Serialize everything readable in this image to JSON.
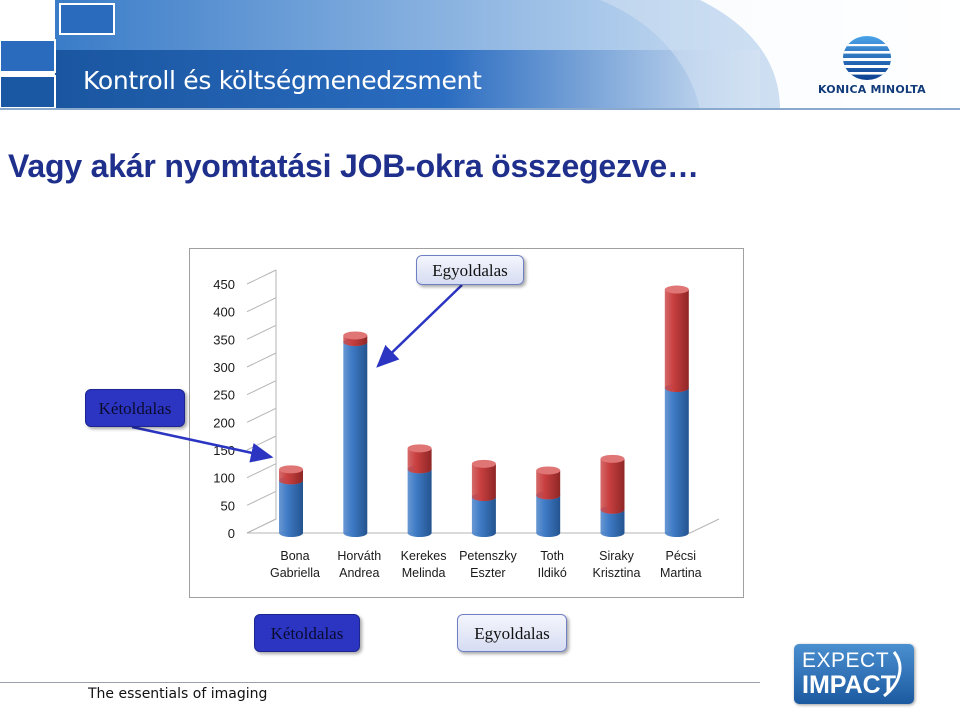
{
  "header": {
    "title": "Kontroll és költségmenedzsment",
    "logo_text": "KONICA MINOLTA",
    "band_color": "#1e5fa8"
  },
  "slide_title": "Vagy akár nyomtatási JOB-okra összegezve…",
  "chart_data": {
    "type": "bar",
    "stacked": true,
    "style": "3d-cylinder",
    "categories": [
      [
        "Bona",
        "Gabriella"
      ],
      [
        "Horváth",
        "Andrea"
      ],
      [
        "Kerekes",
        "Melinda"
      ],
      [
        "Petenszky",
        "Eszter"
      ],
      [
        "Toth",
        "Ildikó"
      ],
      [
        "Siraky",
        "Krisztina"
      ],
      [
        "Pécsi",
        "Martina"
      ]
    ],
    "series": [
      {
        "color": "#3f7bc6",
        "values": [
          95,
          345,
          115,
          65,
          68,
          42,
          262
        ]
      },
      {
        "color": "#c94040",
        "values": [
          20,
          12,
          38,
          60,
          45,
          92,
          178
        ]
      }
    ],
    "yticks": [
      "450",
      "400",
      "350",
      "300",
      "250",
      "200",
      "150",
      "100",
      "50",
      "0"
    ],
    "ylim": [
      0,
      450
    ],
    "grid": false,
    "legend": "bottom"
  },
  "callouts": {
    "one_sided_top": "Egyoldalas",
    "two_sided_left": "Kétoldalas"
  },
  "legend": {
    "two_sided": "Kétoldalas",
    "one_sided": "Egyoldalas"
  },
  "footer": {
    "tagline": "The essentials of imaging",
    "badge_top": "EXPECT",
    "badge_bottom": "IMPACT"
  }
}
